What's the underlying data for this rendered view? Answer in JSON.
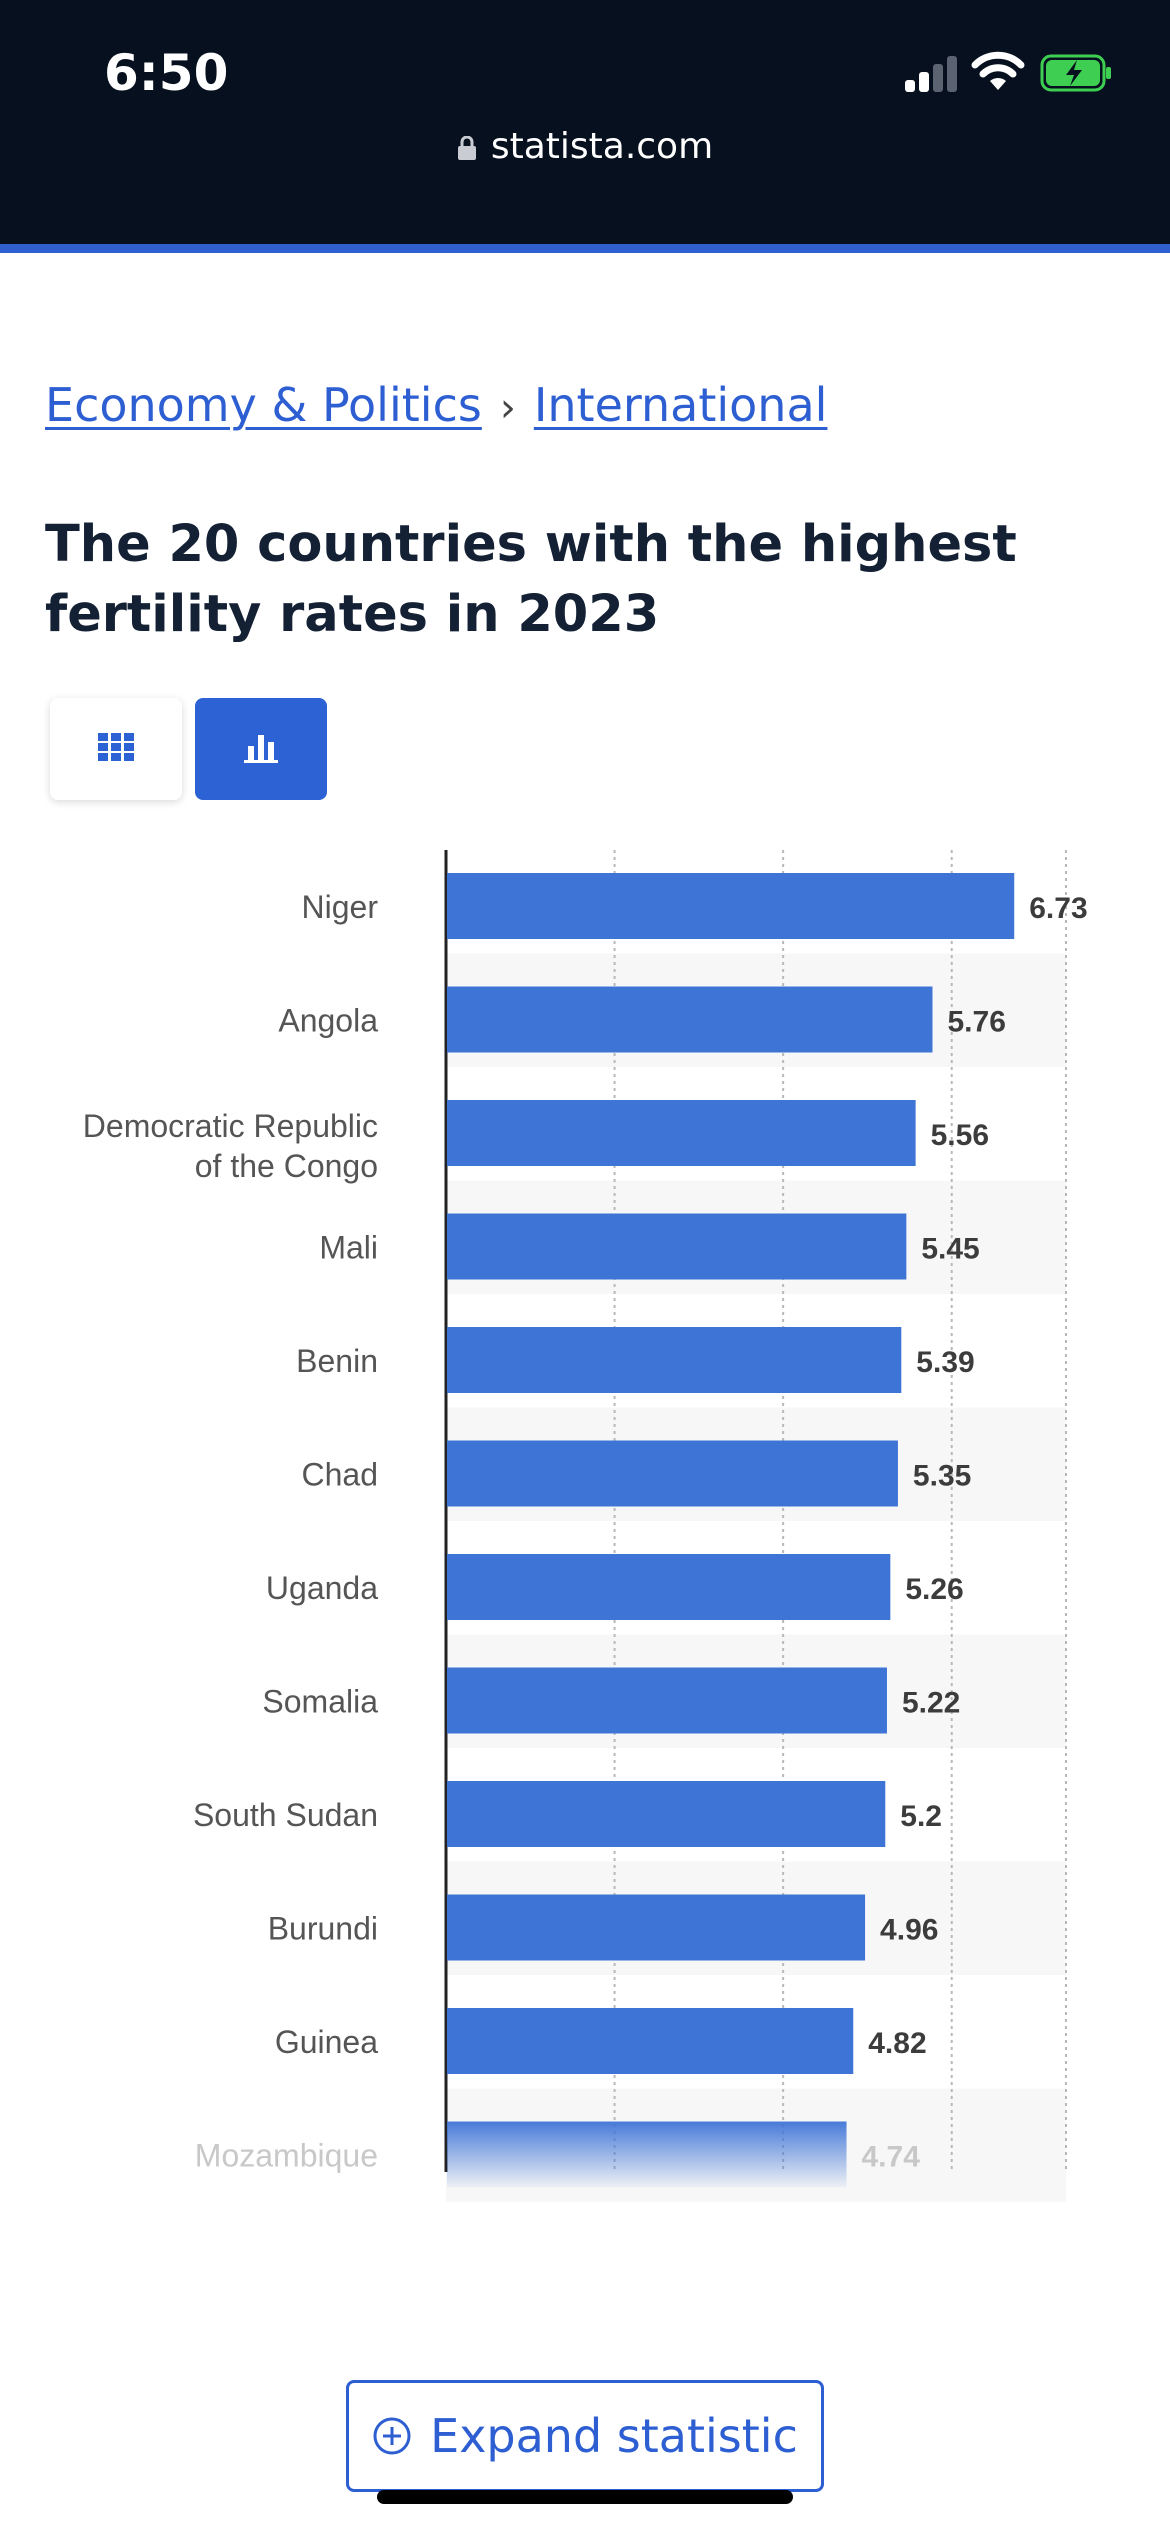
{
  "status_bar": {
    "time": "6:50"
  },
  "browser": {
    "url": "statista.com"
  },
  "breadcrumb": {
    "items": [
      "Economy & Politics",
      "International"
    ],
    "separator": "›"
  },
  "page": {
    "title": "The 20 countries with the highest fertility rates in 2023"
  },
  "view_toggle": {
    "options": [
      "table-grid-icon",
      "bar-chart-icon"
    ],
    "selected": "bar-chart-icon"
  },
  "colors": {
    "accent": "#2d62d4",
    "bar": "#3e74d6",
    "header_bg": "#07101f"
  },
  "chart_data": {
    "type": "bar",
    "orientation": "horizontal",
    "categories": [
      "Niger",
      "Angola",
      "Democratic Republic of the Congo",
      "Mali",
      "Benin",
      "Chad",
      "Uganda",
      "Somalia",
      "South Sudan",
      "Burundi",
      "Guinea",
      "Mozambique"
    ],
    "category_label_lines": [
      [
        "Niger"
      ],
      [
        "Angola"
      ],
      [
        "Democratic Republic",
        "of the Congo"
      ],
      [
        "Mali"
      ],
      [
        "Benin"
      ],
      [
        "Chad"
      ],
      [
        "Uganda"
      ],
      [
        "Somalia"
      ],
      [
        "South Sudan"
      ],
      [
        "Burundi"
      ],
      [
        "Guinea"
      ],
      [
        "Mozambique"
      ]
    ],
    "values": [
      6.73,
      5.76,
      5.56,
      5.45,
      5.39,
      5.35,
      5.26,
      5.22,
      5.2,
      4.96,
      4.82,
      4.74
    ],
    "value_labels": [
      "6.73",
      "5.76",
      "5.56",
      "5.45",
      "5.39",
      "5.35",
      "5.26",
      "5.22",
      "5.2",
      "4.96",
      "4.82",
      "4.74"
    ],
    "xlim": [
      0,
      7
    ],
    "gridlines": [
      2,
      4,
      6
    ],
    "grid": true,
    "faded_last_row": true
  },
  "expand_button": {
    "label": "Expand statistic"
  }
}
